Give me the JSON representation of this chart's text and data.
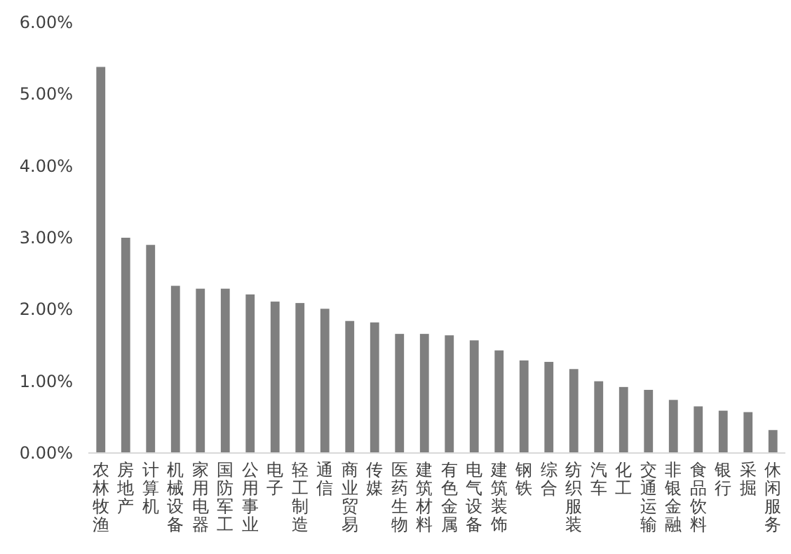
{
  "chart_data": {
    "type": "bar",
    "categories": [
      "农林牧渔",
      "房地产",
      "计算机",
      "机械设备",
      "家用电器",
      "国防军工",
      "公用事业",
      "电子",
      "轻工制造",
      "通信",
      "商业贸易",
      "传媒",
      "医药生物",
      "建筑材料",
      "有色金属",
      "电气设备",
      "建筑装饰",
      "钢铁",
      "综合",
      "纺织服装",
      "汽车",
      "化工",
      "交通运输",
      "非银金融",
      "食品饮料",
      "银行",
      "采掘",
      "休闲服务"
    ],
    "values": [
      5.38,
      3.0,
      2.9,
      2.33,
      2.29,
      2.29,
      2.21,
      2.11,
      2.09,
      2.01,
      1.84,
      1.82,
      1.66,
      1.66,
      1.64,
      1.57,
      1.43,
      1.29,
      1.27,
      1.17,
      1.0,
      0.92,
      0.88,
      0.74,
      0.65,
      0.59,
      0.57,
      0.32
    ],
    "color": "#7f7f7f",
    "ylim": [
      0,
      6
    ],
    "yticks": [
      {
        "value": 0,
        "label": "0.00%"
      },
      {
        "value": 1,
        "label": "1.00%"
      },
      {
        "value": 2,
        "label": "2.00%"
      },
      {
        "value": 3,
        "label": "3.00%"
      },
      {
        "value": 4,
        "label": "4.00%"
      },
      {
        "value": 5,
        "label": "5.00%"
      },
      {
        "value": 6,
        "label": "6.00%"
      }
    ],
    "grid": false
  }
}
